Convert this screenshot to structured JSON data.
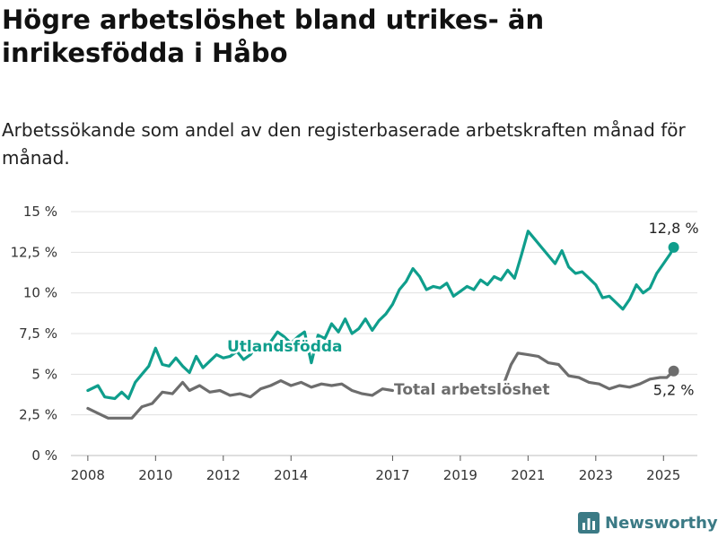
{
  "colors": {
    "foreign_born": "#0f9e8c",
    "total": "#6d6d6d",
    "grid": "#e0e0e0",
    "text": "#111111",
    "brand": "#3b7a85"
  },
  "brand": {
    "name": "Newsworthy",
    "icon": "bar-chart-logo-icon"
  },
  "chart_data": {
    "type": "line",
    "title": "Högre arbetslöshet bland utrikes- än inrikesfödda i Håbo",
    "subtitle": "Arbetssökande som andel av den registerbaserade arbetskraften månad för månad.",
    "xlabel": "",
    "ylabel": "",
    "xlim": [
      2007.5,
      2026.0
    ],
    "ylim": [
      0,
      15
    ],
    "x_ticks": [
      2008,
      2010,
      2012,
      2014,
      2017,
      2019,
      2021,
      2023,
      2025
    ],
    "x_tick_labels": [
      "2008",
      "2010",
      "2012",
      "2014",
      "2017",
      "2019",
      "2021",
      "2023",
      "2025"
    ],
    "y_ticks": [
      0,
      2.5,
      5,
      7.5,
      10,
      12.5,
      15
    ],
    "y_tick_labels": [
      "0 %",
      "2,5 %",
      "5 %",
      "7,5 %",
      "10 %",
      "12,5 %",
      "15 %"
    ],
    "grid": "horizontal",
    "legend": "inline labels",
    "series": [
      {
        "name": "Utlandsfödda",
        "color": "#0f9e8c",
        "last_label": "12,8 %",
        "last_value": 12.8,
        "points": [
          [
            2008.0,
            4.0
          ],
          [
            2008.3,
            4.3
          ],
          [
            2008.5,
            3.6
          ],
          [
            2008.8,
            3.5
          ],
          [
            2009.0,
            3.9
          ],
          [
            2009.2,
            3.5
          ],
          [
            2009.4,
            4.5
          ],
          [
            2009.6,
            5.0
          ],
          [
            2009.8,
            5.5
          ],
          [
            2010.0,
            6.6
          ],
          [
            2010.2,
            5.6
          ],
          [
            2010.4,
            5.5
          ],
          [
            2010.6,
            6.0
          ],
          [
            2010.8,
            5.5
          ],
          [
            2011.0,
            5.1
          ],
          [
            2011.2,
            6.1
          ],
          [
            2011.4,
            5.4
          ],
          [
            2011.6,
            5.8
          ],
          [
            2011.8,
            6.2
          ],
          [
            2012.0,
            6.0
          ],
          [
            2012.2,
            6.1
          ],
          [
            2012.4,
            6.4
          ],
          [
            2012.6,
            5.9
          ],
          [
            2012.8,
            6.2
          ],
          [
            2013.0,
            6.8
          ],
          [
            2013.2,
            6.5
          ],
          [
            2013.4,
            7.0
          ],
          [
            2013.6,
            7.6
          ],
          [
            2013.8,
            7.3
          ],
          [
            2014.0,
            6.9
          ],
          [
            2014.2,
            7.3
          ],
          [
            2014.4,
            7.6
          ],
          [
            2014.6,
            5.7
          ],
          [
            2014.8,
            7.4
          ],
          [
            2015.0,
            7.2
          ],
          [
            2015.2,
            8.1
          ],
          [
            2015.4,
            7.6
          ],
          [
            2015.6,
            8.4
          ],
          [
            2015.8,
            7.5
          ],
          [
            2016.0,
            7.8
          ],
          [
            2016.2,
            8.4
          ],
          [
            2016.4,
            7.7
          ],
          [
            2016.6,
            8.3
          ],
          [
            2016.8,
            8.7
          ],
          [
            2017.0,
            9.3
          ],
          [
            2017.2,
            10.2
          ],
          [
            2017.4,
            10.7
          ],
          [
            2017.6,
            11.5
          ],
          [
            2017.8,
            11.0
          ],
          [
            2018.0,
            10.2
          ],
          [
            2018.2,
            10.4
          ],
          [
            2018.4,
            10.3
          ],
          [
            2018.6,
            10.6
          ],
          [
            2018.8,
            9.8
          ],
          [
            2019.0,
            10.1
          ],
          [
            2019.2,
            10.4
          ],
          [
            2019.4,
            10.2
          ],
          [
            2019.6,
            10.8
          ],
          [
            2019.8,
            10.5
          ],
          [
            2020.0,
            11.0
          ],
          [
            2020.2,
            10.8
          ],
          [
            2020.4,
            11.4
          ],
          [
            2020.6,
            10.9
          ],
          [
            2020.8,
            12.3
          ],
          [
            2021.0,
            13.8
          ],
          [
            2021.2,
            13.3
          ],
          [
            2021.4,
            12.8
          ],
          [
            2021.6,
            12.3
          ],
          [
            2021.8,
            11.8
          ],
          [
            2022.0,
            12.6
          ],
          [
            2022.2,
            11.6
          ],
          [
            2022.4,
            11.2
          ],
          [
            2022.6,
            11.3
          ],
          [
            2022.8,
            10.9
          ],
          [
            2023.0,
            10.5
          ],
          [
            2023.2,
            9.7
          ],
          [
            2023.4,
            9.8
          ],
          [
            2023.6,
            9.4
          ],
          [
            2023.8,
            9.0
          ],
          [
            2024.0,
            9.6
          ],
          [
            2024.2,
            10.5
          ],
          [
            2024.4,
            10.0
          ],
          [
            2024.6,
            10.3
          ],
          [
            2024.8,
            11.2
          ],
          [
            2025.0,
            11.8
          ],
          [
            2025.2,
            12.4
          ],
          [
            2025.3,
            12.8
          ]
        ]
      },
      {
        "name": "Total arbetslöshet",
        "color": "#6d6d6d",
        "last_label": "5,2 %",
        "last_value": 5.2,
        "segments": [
          [
            [
              2008.0,
              2.9
            ],
            [
              2008.3,
              2.6
            ],
            [
              2008.6,
              2.3
            ],
            [
              2009.0,
              2.3
            ],
            [
              2009.3,
              2.3
            ],
            [
              2009.6,
              3.0
            ],
            [
              2009.9,
              3.2
            ],
            [
              2010.2,
              3.9
            ],
            [
              2010.5,
              3.8
            ],
            [
              2010.8,
              4.5
            ],
            [
              2011.0,
              4.0
            ],
            [
              2011.3,
              4.3
            ],
            [
              2011.6,
              3.9
            ],
            [
              2011.9,
              4.0
            ],
            [
              2012.2,
              3.7
            ],
            [
              2012.5,
              3.8
            ],
            [
              2012.8,
              3.6
            ],
            [
              2013.1,
              4.1
            ],
            [
              2013.4,
              4.3
            ],
            [
              2013.7,
              4.6
            ],
            [
              2014.0,
              4.3
            ],
            [
              2014.3,
              4.5
            ],
            [
              2014.6,
              4.2
            ],
            [
              2014.9,
              4.4
            ],
            [
              2015.2,
              4.3
            ],
            [
              2015.5,
              4.4
            ],
            [
              2015.8,
              4.0
            ],
            [
              2016.1,
              3.8
            ],
            [
              2016.4,
              3.7
            ],
            [
              2016.7,
              4.1
            ],
            [
              2017.0,
              4.0
            ]
          ],
          [
            [
              2020.3,
              4.5
            ],
            [
              2020.5,
              5.6
            ],
            [
              2020.7,
              6.3
            ],
            [
              2021.0,
              6.2
            ],
            [
              2021.3,
              6.1
            ],
            [
              2021.6,
              5.7
            ],
            [
              2021.9,
              5.6
            ],
            [
              2022.2,
              4.9
            ],
            [
              2022.5,
              4.8
            ],
            [
              2022.8,
              4.5
            ],
            [
              2023.1,
              4.4
            ],
            [
              2023.4,
              4.1
            ],
            [
              2023.7,
              4.3
            ],
            [
              2024.0,
              4.2
            ],
            [
              2024.3,
              4.4
            ],
            [
              2024.6,
              4.7
            ],
            [
              2024.9,
              4.8
            ],
            [
              2025.1,
              4.8
            ],
            [
              2025.3,
              5.2
            ]
          ]
        ]
      }
    ]
  }
}
